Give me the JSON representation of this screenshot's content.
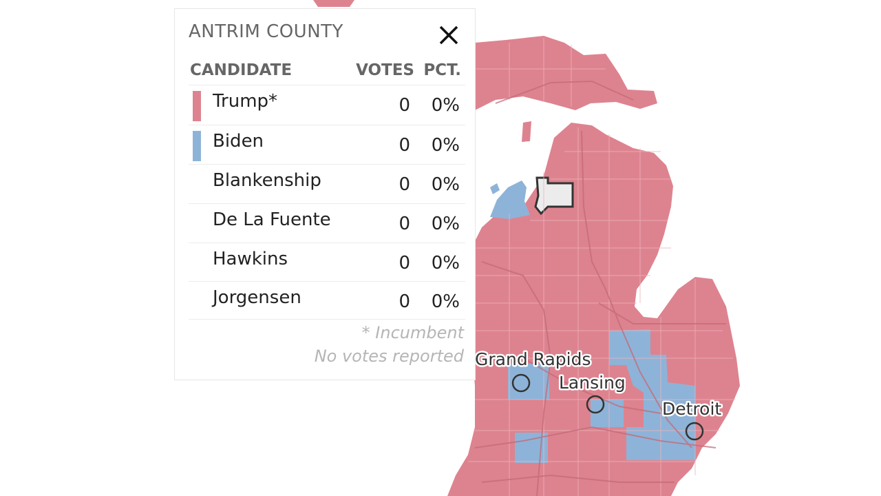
{
  "colors": {
    "republican": "#dd838f",
    "democrat": "#8eb3d8",
    "selected_fill": "#ececec",
    "road": "#c46a77"
  },
  "map": {
    "cities": [
      {
        "name": "Grand Rapids"
      },
      {
        "name": "Lansing"
      },
      {
        "name": "Detroit"
      }
    ],
    "selected_county": "Antrim"
  },
  "popup": {
    "title": "ANTRIM COUNTY",
    "close_icon": "close-icon",
    "headers": {
      "candidate": "CANDIDATE",
      "votes": "VOTES",
      "pct": "PCT."
    },
    "rows": [
      {
        "candidate": "Trump*",
        "votes": "0",
        "pct": "0%",
        "party": "republican"
      },
      {
        "candidate": "Biden",
        "votes": "0",
        "pct": "0%",
        "party": "democrat"
      },
      {
        "candidate": "Blankenship",
        "votes": "0",
        "pct": "0%",
        "party": ""
      },
      {
        "candidate": "De La Fuente",
        "votes": "0",
        "pct": "0%",
        "party": ""
      },
      {
        "candidate": "Hawkins",
        "votes": "0",
        "pct": "0%",
        "party": ""
      },
      {
        "candidate": "Jorgensen",
        "votes": "0",
        "pct": "0%",
        "party": ""
      }
    ],
    "footnote_incumbent": "* Incumbent",
    "footnote_status": "No votes reported"
  }
}
